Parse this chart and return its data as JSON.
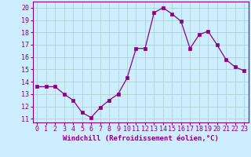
{
  "x": [
    0,
    1,
    2,
    3,
    4,
    5,
    6,
    7,
    8,
    9,
    10,
    11,
    12,
    13,
    14,
    15,
    16,
    17,
    18,
    19,
    20,
    21,
    22,
    23
  ],
  "y": [
    13.6,
    13.6,
    13.6,
    13.0,
    12.5,
    11.5,
    11.1,
    11.9,
    12.5,
    13.0,
    14.3,
    16.7,
    16.7,
    19.6,
    20.0,
    19.5,
    18.9,
    16.7,
    17.8,
    18.1,
    17.0,
    15.8,
    15.2,
    14.9
  ],
  "line_color": "#880088",
  "marker": "s",
  "marker_size": 2.5,
  "bg_color": "#cceeff",
  "grid_color": "#aacccc",
  "xlabel": "Windchill (Refroidissement éolien,°C)",
  "xlabel_fontsize": 6.5,
  "ylabel_ticks": [
    11,
    12,
    13,
    14,
    15,
    16,
    17,
    18,
    19,
    20
  ],
  "xlim": [
    -0.5,
    23.5
  ],
  "ylim": [
    10.7,
    20.5
  ],
  "tick_fontsize": 6.0,
  "label_color": "#880088"
}
